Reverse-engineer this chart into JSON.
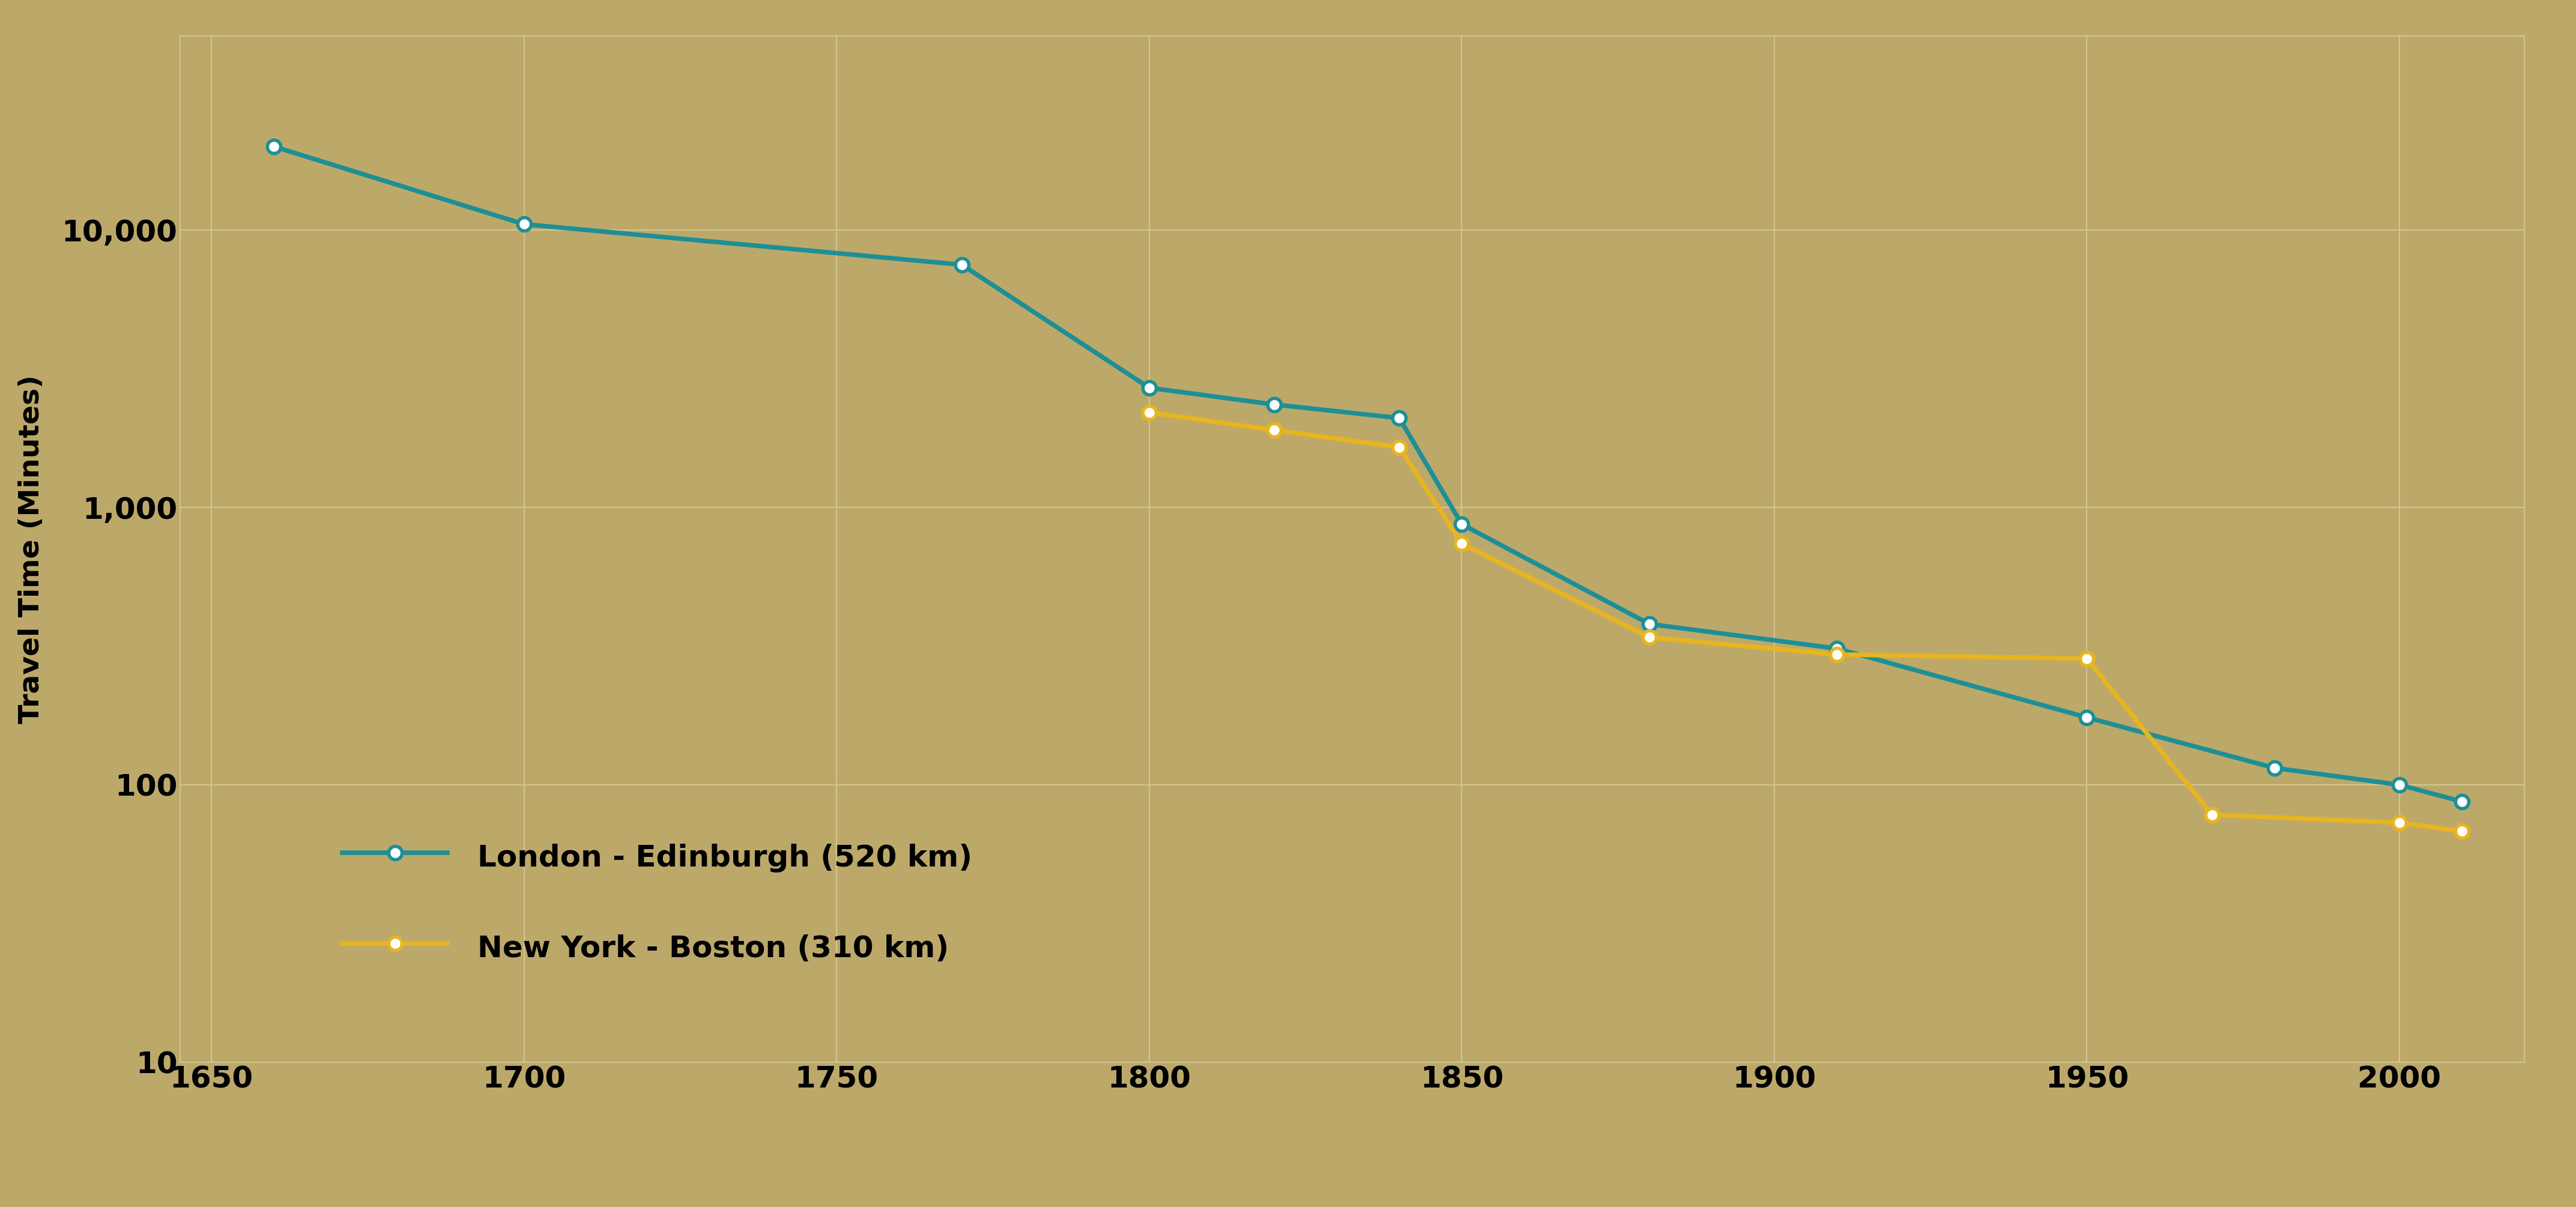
{
  "london_edinburgh": {
    "x": [
      1660,
      1700,
      1770,
      1800,
      1820,
      1840,
      1850,
      1880,
      1910,
      1950,
      1980,
      2000,
      2010
    ],
    "y": [
      20000,
      10500,
      7500,
      2700,
      2350,
      2100,
      870,
      380,
      310,
      175,
      115,
      100,
      87
    ]
  },
  "ny_boston": {
    "x": [
      1800,
      1820,
      1840,
      1850,
      1880,
      1910,
      1950,
      1970,
      2000,
      2010
    ],
    "y": [
      2200,
      1900,
      1650,
      740,
      340,
      295,
      285,
      78,
      73,
      68
    ]
  },
  "bg_color": "#BCA96A",
  "grid_color": "#D4C590",
  "line_color_london": "#1E8F96",
  "line_color_ny": "#E8B520",
  "marker_inner": "#FFFFFF",
  "ylabel": "Travel Time (Minutes)",
  "xlim": [
    1645,
    2020
  ],
  "ylim": [
    10,
    50000
  ],
  "xticks": [
    1650,
    1700,
    1750,
    1800,
    1850,
    1900,
    1950,
    2000
  ],
  "ytick_labels": [
    "10",
    "100",
    "1,000",
    "10,000"
  ],
  "ytick_values": [
    10,
    100,
    1000,
    10000
  ],
  "legend_london": "London - Edinburgh (520 km)",
  "legend_ny": "New York - Boston (310 km)",
  "legend_fontsize": 36,
  "axis_label_fontsize": 34,
  "tick_fontsize": 36,
  "linewidth": 5.5,
  "markersize": 16,
  "markeredgewidth": 4
}
